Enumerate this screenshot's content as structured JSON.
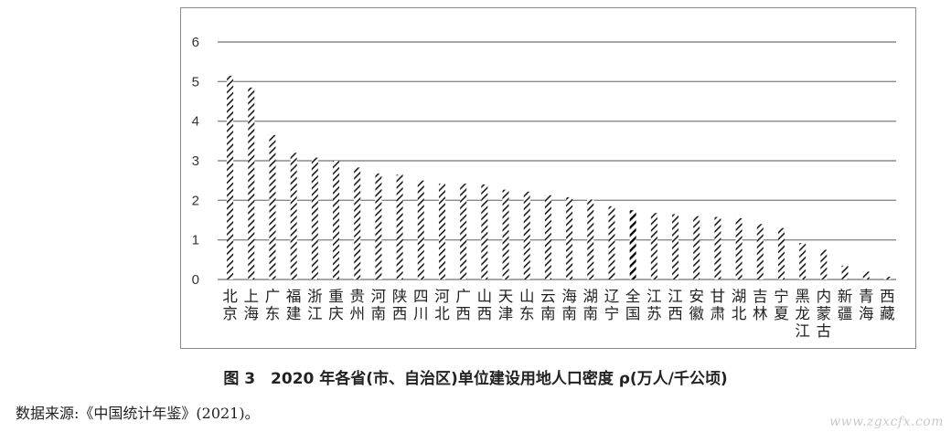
{
  "chart_data": {
    "type": "bar",
    "title": "图 3　2020 年各省(市、自治区)单位建设用地人口密度 ρ(万人/千公顷)",
    "xlabel": "",
    "ylabel": "",
    "ylim": [
      0,
      6
    ],
    "yticks": [
      "0",
      "1",
      "2",
      "3",
      "4",
      "5",
      "6"
    ],
    "grid": true,
    "categories": [
      "北京",
      "上海",
      "广东",
      "福建",
      "浙江",
      "重庆",
      "贵州",
      "河南",
      "陕西",
      "四川",
      "河北",
      "广西",
      "山西",
      "天津",
      "山东",
      "云南",
      "海南",
      "湖南",
      "辽宁",
      "全国",
      "江苏",
      "江西",
      "安徽",
      "甘肃",
      "湖北",
      "吉林",
      "宁夏",
      "黑龙江",
      "内蒙古",
      "新疆",
      "青海",
      "西藏"
    ],
    "values": [
      5.15,
      4.85,
      3.65,
      3.2,
      3.08,
      3.0,
      2.83,
      2.68,
      2.65,
      2.5,
      2.42,
      2.42,
      2.4,
      2.27,
      2.22,
      2.13,
      2.08,
      2.02,
      1.85,
      1.75,
      1.68,
      1.65,
      1.6,
      1.58,
      1.55,
      1.4,
      1.3,
      0.92,
      0.75,
      0.35,
      0.2,
      0.07
    ],
    "highlight": "全国",
    "colors": {
      "bar_pattern": "#1a1a1a",
      "highlight": "#000000",
      "grid": "#8a8a8a"
    }
  },
  "source_note": "数据来源:《中国统计年鉴》(2021)。",
  "watermark": "www.zgxcfx.com"
}
